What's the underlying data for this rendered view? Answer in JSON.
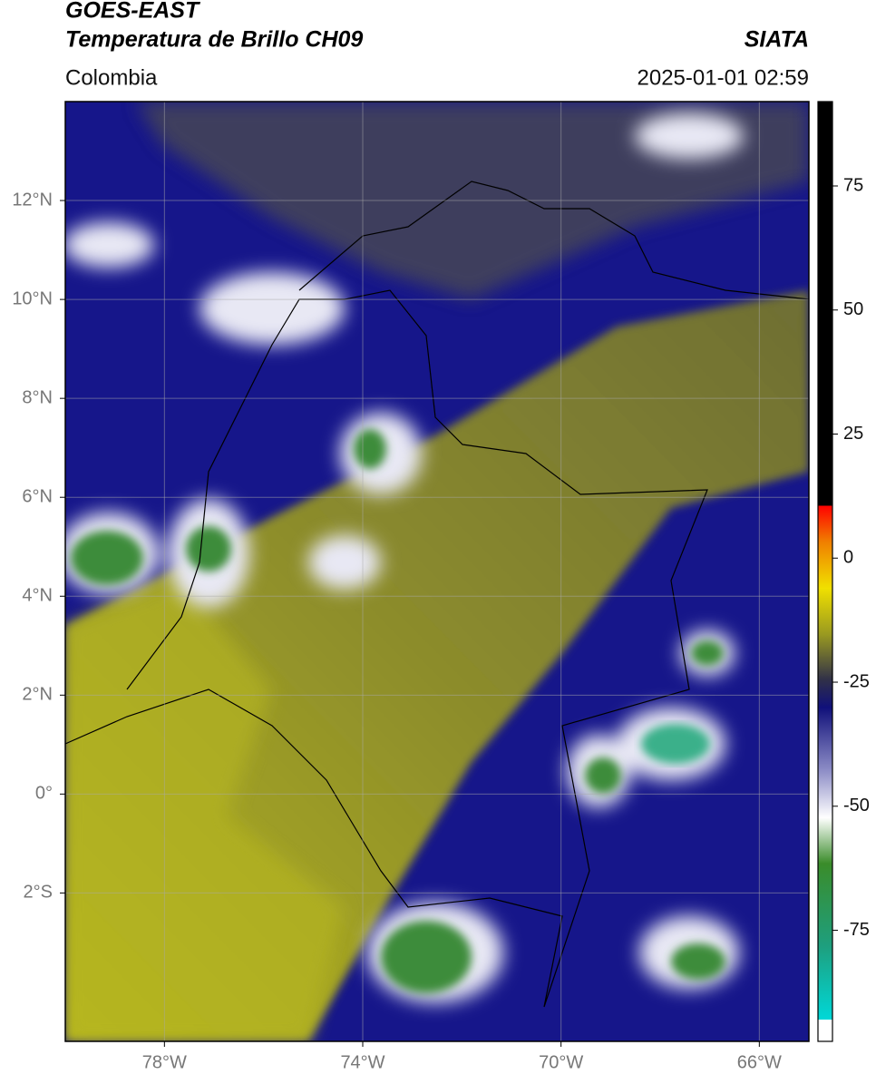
{
  "header": {
    "title": "GOES-EAST",
    "subtitle": "Temperatura de Brillo CH09",
    "source": "SIATA",
    "region": "Colombia",
    "datetime": "2025-01-01 02:59"
  },
  "map": {
    "xlim": [
      -80,
      -65
    ],
    "ylim": [
      -5,
      14
    ],
    "xticks": [
      {
        "value": -78,
        "label": "78°W"
      },
      {
        "value": -74,
        "label": "74°W"
      },
      {
        "value": -70,
        "label": "70°W"
      },
      {
        "value": -66,
        "label": "66°W"
      }
    ],
    "yticks": [
      {
        "value": -2,
        "label": "2°S"
      },
      {
        "value": 0,
        "label": "0°"
      },
      {
        "value": 2,
        "label": "2°N"
      },
      {
        "value": 4,
        "label": "4°N"
      },
      {
        "value": 6,
        "label": "6°N"
      },
      {
        "value": 8,
        "label": "8°N"
      },
      {
        "value": 10,
        "label": "10°N"
      },
      {
        "value": 12,
        "label": "12°N"
      }
    ],
    "grid": true
  },
  "colorbar": {
    "lim": [
      -93,
      92
    ],
    "ticks": [
      75,
      50,
      25,
      0,
      -25,
      -50,
      -75
    ]
  }
}
